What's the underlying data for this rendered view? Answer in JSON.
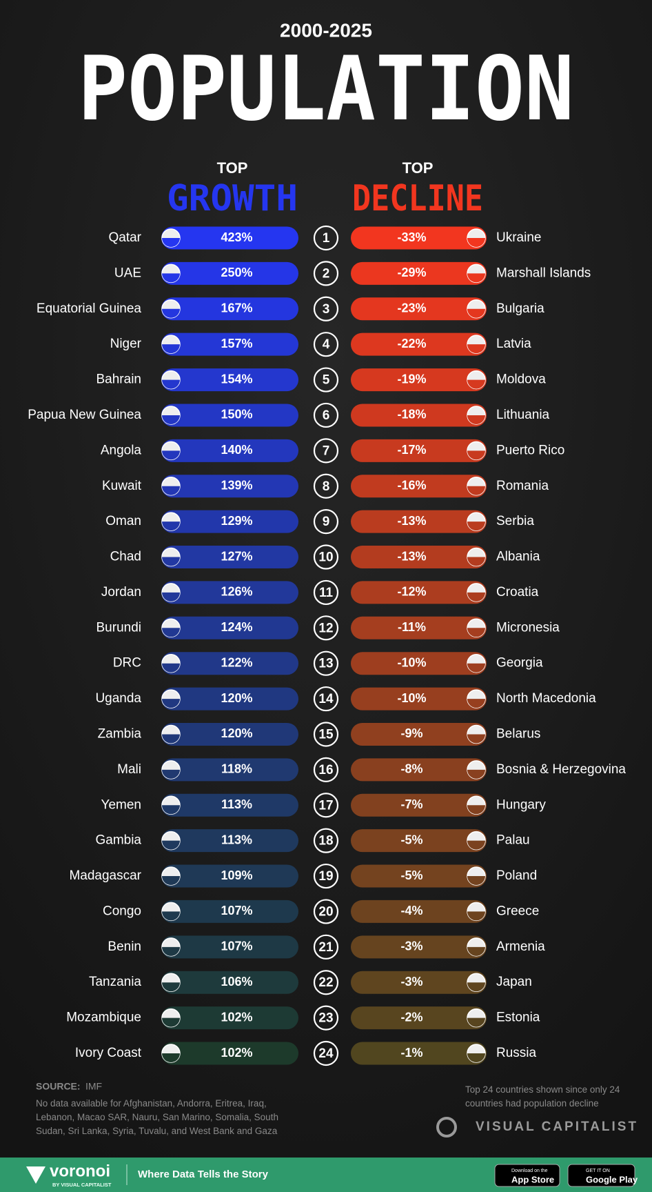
{
  "chart_data": {
    "type": "ranked-pills",
    "subtitle": "2000-2025",
    "title": "POPULATION",
    "ranks": [
      1,
      2,
      3,
      4,
      5,
      6,
      7,
      8,
      9,
      10,
      11,
      12,
      13,
      14,
      15,
      16,
      17,
      18,
      19,
      20,
      21,
      22,
      23,
      24
    ],
    "series": [
      {
        "heading": "TOP",
        "name": "GROWTH",
        "color_start": "#2536f0",
        "color_end": "#1d3a2b",
        "categories": [
          "Qatar",
          "UAE",
          "Equatorial Guinea",
          "Niger",
          "Bahrain",
          "Papua New Guinea",
          "Angola",
          "Kuwait",
          "Oman",
          "Chad",
          "Jordan",
          "Burundi",
          "DRC",
          "Uganda",
          "Zambia",
          "Mali",
          "Yemen",
          "Gambia",
          "Madagascar",
          "Congo",
          "Benin",
          "Tanzania",
          "Mozambique",
          "Ivory Coast"
        ],
        "values": [
          423,
          250,
          167,
          157,
          154,
          150,
          140,
          139,
          129,
          127,
          126,
          124,
          122,
          120,
          120,
          118,
          113,
          113,
          109,
          107,
          107,
          106,
          102,
          102
        ],
        "value_labels": [
          "423%",
          "250%",
          "167%",
          "157%",
          "154%",
          "150%",
          "140%",
          "139%",
          "129%",
          "127%",
          "126%",
          "124%",
          "122%",
          "120%",
          "120%",
          "118%",
          "113%",
          "113%",
          "109%",
          "107%",
          "107%",
          "106%",
          "102%",
          "102%"
        ]
      },
      {
        "heading": "TOP",
        "name": "DECLINE",
        "color_start": "#f2361f",
        "color_end": "#51461f",
        "categories": [
          "Ukraine",
          "Marshall Islands",
          "Bulgaria",
          "Latvia",
          "Moldova",
          "Lithuania",
          "Puerto Rico",
          "Romania",
          "Serbia",
          "Albania",
          "Croatia",
          "Micronesia",
          "Georgia",
          "North Macedonia",
          "Belarus",
          "Bosnia & Herzegovina",
          "Hungary",
          "Palau",
          "Poland",
          "Greece",
          "Armenia",
          "Japan",
          "Estonia",
          "Russia"
        ],
        "values": [
          -33,
          -29,
          -23,
          -22,
          -19,
          -18,
          -17,
          -16,
          -13,
          -13,
          -12,
          -11,
          -10,
          -10,
          -9,
          -8,
          -7,
          -5,
          -5,
          -4,
          -3,
          -3,
          -2,
          -1
        ],
        "value_labels": [
          "-33%",
          "-29%",
          "-23%",
          "-22%",
          "-19%",
          "-18%",
          "-17%",
          "-16%",
          "-13%",
          "-13%",
          "-12%",
          "-11%",
          "-10%",
          "-10%",
          "-9%",
          "-8%",
          "-7%",
          "-5%",
          "-5%",
          "-4%",
          "-3%",
          "-3%",
          "-2%",
          "-1%"
        ]
      }
    ]
  },
  "source": {
    "label": "SOURCE:",
    "text": "IMF"
  },
  "note_left": "No data available for Afghanistan, Andorra, Eritrea, Iraq, Lebanon, Macao SAR, Nauru, San Marino, Somalia, South Sudan, Sri Lanka, Syria, Tuvalu, and West Bank and Gaza",
  "note_right": "Top 24 countries shown since only 24 countries had population decline",
  "brand": "VISUAL CAPITALIST",
  "footer": {
    "logo": "voronoi",
    "logo_sub": "BY VISUAL CAPITALIST",
    "tagline": "Where Data Tells the Story",
    "app_store_small": "Download on the",
    "app_store": "App Store",
    "google_small": "GET IT ON",
    "google": "Google Play"
  }
}
